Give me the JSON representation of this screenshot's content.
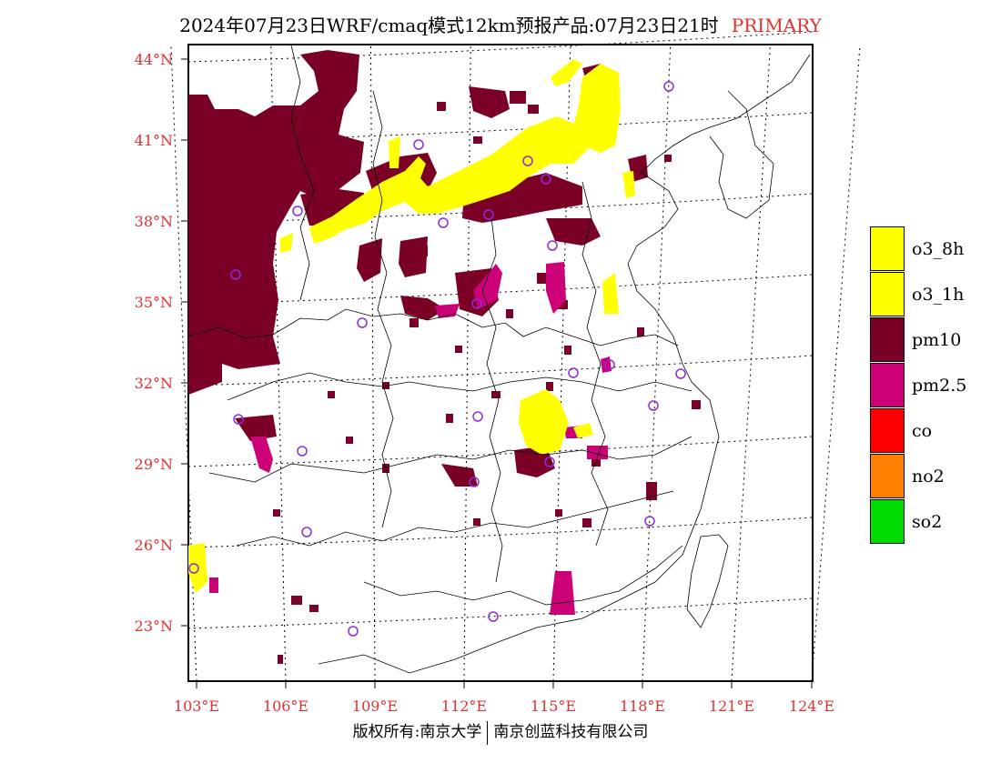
{
  "title": {
    "main": "2024年07月23日WRF/cmaq模式12km预报产品:07月23日21时",
    "tag": "PRIMARY"
  },
  "colors": {
    "axis_label": "#e03030",
    "o3_8h": "#ffff00",
    "o3_1h": "#ffff00",
    "pm10": "#7a0026",
    "pm25": "#cc0077",
    "co": "#ff0000",
    "no2": "#ff8000",
    "so2": "#00dd00",
    "station_marker": "#8a2be2"
  },
  "axes": {
    "lat_labels": [
      "44°N",
      "41°N",
      "38°N",
      "35°N",
      "32°N",
      "29°N",
      "26°N",
      "23°N"
    ],
    "lon_labels": [
      "103°E",
      "106°E",
      "109°E",
      "112°E",
      "115°E",
      "118°E",
      "121°E",
      "124°E"
    ]
  },
  "legend": [
    {
      "key": "o3_8h",
      "label": "o3_8h"
    },
    {
      "key": "o3_1h",
      "label": "o3_1h"
    },
    {
      "key": "pm10",
      "label": "pm10"
    },
    {
      "key": "pm25",
      "label": "pm2.5"
    },
    {
      "key": "co",
      "label": "co"
    },
    {
      "key": "no2",
      "label": "no2"
    },
    {
      "key": "so2",
      "label": "so2"
    }
  ],
  "footer": {
    "left": "版权所有:南京大学",
    "right": "南京创蓝科技有限公司"
  }
}
